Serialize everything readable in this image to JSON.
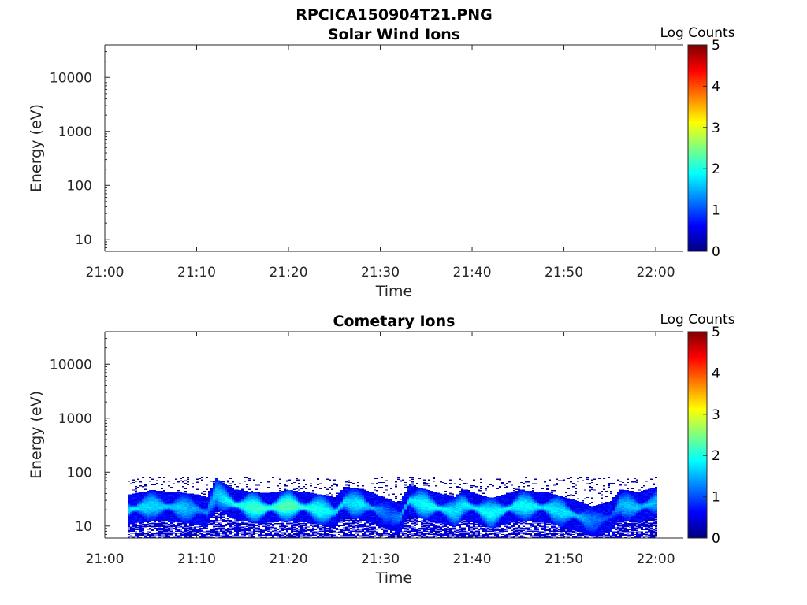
{
  "figure_title": "RPCICA150904T21.PNG",
  "colorbar_stops": [
    "#00007f",
    "#0000ff",
    "#007fff",
    "#00ffff",
    "#7fff7f",
    "#ffff00",
    "#ff7f00",
    "#ff0000",
    "#7f0000"
  ],
  "chart_data": [
    {
      "type": "heatmap",
      "title": "Solar Wind Ions",
      "xlabel": "Time",
      "ylabel": "Energy (eV)",
      "yscale": "log",
      "xlim": [
        "21:00",
        "22:03"
      ],
      "ylim": [
        6,
        40000
      ],
      "xticks": [
        "21:00",
        "21:10",
        "21:20",
        "21:30",
        "21:40",
        "21:50",
        "22:00"
      ],
      "yticks": [
        "10",
        "100",
        "1000",
        "10000"
      ],
      "colorbar": {
        "label": "Log Counts",
        "range": [
          0,
          5
        ],
        "ticks": [
          "0",
          "1",
          "2",
          "3",
          "4",
          "5"
        ]
      },
      "data_start": "",
      "data_end": "",
      "series": []
    },
    {
      "type": "heatmap",
      "title": "Cometary Ions",
      "xlabel": "Time",
      "ylabel": "Energy (eV)",
      "yscale": "log",
      "xlim": [
        "21:00",
        "22:03"
      ],
      "ylim": [
        6,
        40000
      ],
      "xticks": [
        "21:00",
        "21:10",
        "21:20",
        "21:30",
        "21:40",
        "21:50",
        "22:00"
      ],
      "yticks": [
        "10",
        "100",
        "1000",
        "10000"
      ],
      "colorbar": {
        "label": "Log Counts",
        "range": [
          0,
          5
        ],
        "ticks": [
          "0",
          "1",
          "2",
          "3",
          "4",
          "5"
        ]
      },
      "data_start": "21:02.5",
      "data_end": "22:00",
      "sparse_energy_max": 80,
      "series": [
        {
          "time": [
            "21:02.5",
            "21:05",
            "21:08",
            "21:10",
            "21:11",
            "21:12",
            "21:14",
            "21:17",
            "21:20",
            "21:22",
            "21:25",
            "21:26",
            "21:28",
            "21:31",
            "21:32",
            "21:33",
            "21:36",
            "21:38",
            "21:39",
            "21:42",
            "21:45",
            "21:48",
            "21:51",
            "21:53",
            "21:55",
            "21:56",
            "21:58",
            "22:00"
          ],
          "center_energy_ev": [
            20,
            24,
            22,
            20,
            18,
            40,
            25,
            21,
            24,
            22,
            18,
            28,
            25,
            16,
            14,
            30,
            22,
            18,
            25,
            17,
            24,
            22,
            16,
            12,
            15,
            25,
            22,
            28
          ],
          "peak_log_counts": [
            1.8,
            1.7,
            1.6,
            1.4,
            1.3,
            1.6,
            2.0,
            2.2,
            2.3,
            2.1,
            1.8,
            1.7,
            1.8,
            1.0,
            1.3,
            1.8,
            2.0,
            1.7,
            1.8,
            1.9,
            1.9,
            1.8,
            1.7,
            1.2,
            1.0,
            1.5,
            1.6,
            1.5
          ]
        }
      ]
    }
  ]
}
